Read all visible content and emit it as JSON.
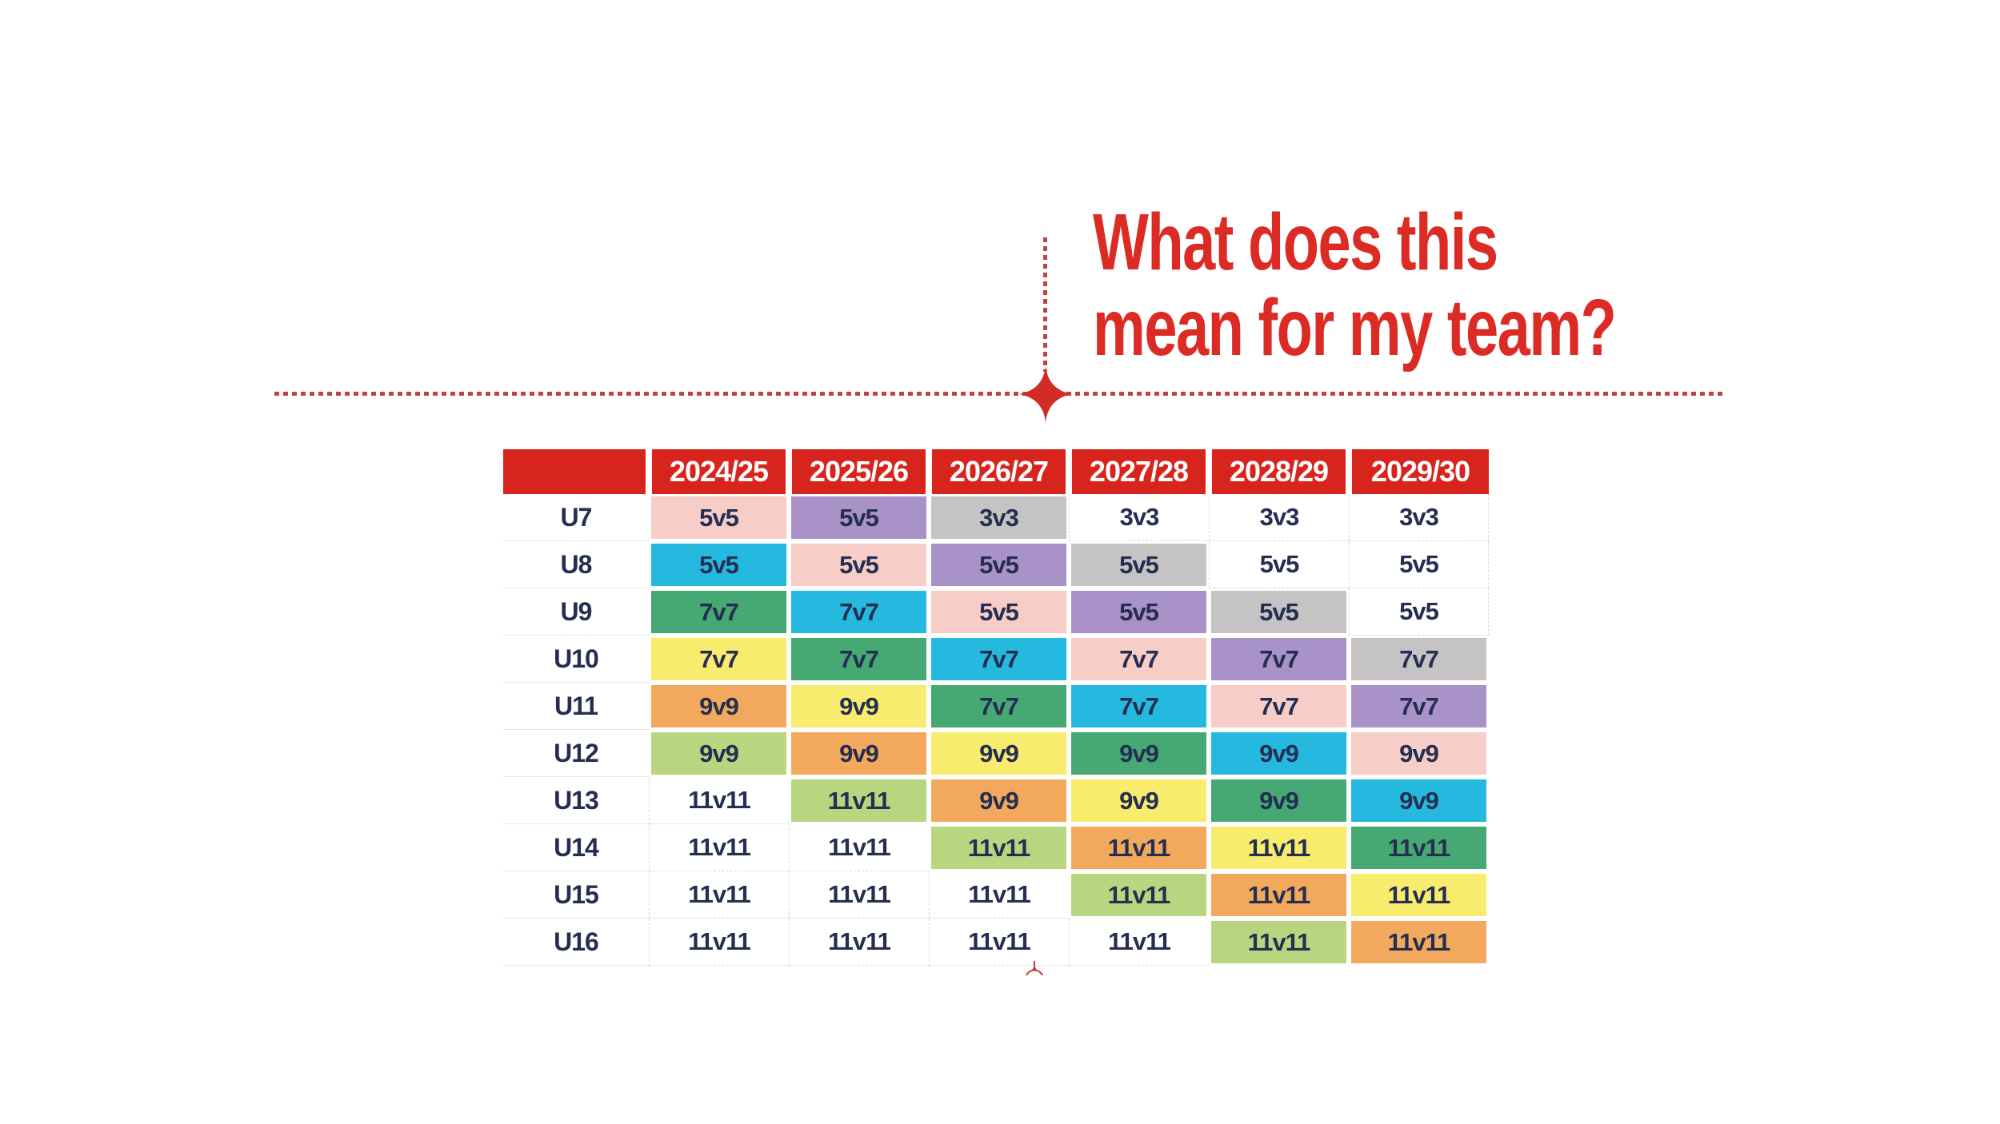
{
  "title": {
    "line1": "What does this",
    "line2": "mean for my team?",
    "color": "#dc2b24"
  },
  "decor": {
    "dash_color": "#c4423d",
    "spark_color": "#d32b25",
    "mini_mark_color": "#c83a33",
    "spark_icon": "four-point-star",
    "mini_mark_icon": "small-spark"
  },
  "table": {
    "header": {
      "corner": "",
      "seasons": [
        "2024/25",
        "2025/26",
        "2026/27",
        "2027/28",
        "2028/29",
        "2029/30"
      ],
      "bg": "#d7251e",
      "text_color": "#ffffff"
    },
    "text_color": "#252e50",
    "palette": {
      "pink": "#f7cdc7",
      "purple": "#a992c7",
      "grey": "#c5c3c3",
      "blue": "#25b9e0",
      "green": "#46a873",
      "yellow": "#f7ec6e",
      "orange": "#f2a95d",
      "lime": "#b8d680",
      "white": "#ffffff"
    },
    "rows": [
      {
        "age": "U7",
        "cells": [
          {
            "format": "5v5",
            "color": "pink"
          },
          {
            "format": "5v5",
            "color": "purple"
          },
          {
            "format": "3v3",
            "color": "grey"
          },
          {
            "format": "3v3",
            "color": "white"
          },
          {
            "format": "3v3",
            "color": "white"
          },
          {
            "format": "3v3",
            "color": "white"
          }
        ]
      },
      {
        "age": "U8",
        "cells": [
          {
            "format": "5v5",
            "color": "blue"
          },
          {
            "format": "5v5",
            "color": "pink"
          },
          {
            "format": "5v5",
            "color": "purple"
          },
          {
            "format": "5v5",
            "color": "grey"
          },
          {
            "format": "5v5",
            "color": "white"
          },
          {
            "format": "5v5",
            "color": "white"
          }
        ]
      },
      {
        "age": "U9",
        "cells": [
          {
            "format": "7v7",
            "color": "green"
          },
          {
            "format": "7v7",
            "color": "blue"
          },
          {
            "format": "5v5",
            "color": "pink"
          },
          {
            "format": "5v5",
            "color": "purple"
          },
          {
            "format": "5v5",
            "color": "grey"
          },
          {
            "format": "5v5",
            "color": "white"
          }
        ]
      },
      {
        "age": "U10",
        "cells": [
          {
            "format": "7v7",
            "color": "yellow"
          },
          {
            "format": "7v7",
            "color": "green"
          },
          {
            "format": "7v7",
            "color": "blue"
          },
          {
            "format": "7v7",
            "color": "pink"
          },
          {
            "format": "7v7",
            "color": "purple"
          },
          {
            "format": "7v7",
            "color": "grey"
          }
        ]
      },
      {
        "age": "U11",
        "cells": [
          {
            "format": "9v9",
            "color": "orange"
          },
          {
            "format": "9v9",
            "color": "yellow"
          },
          {
            "format": "7v7",
            "color": "green"
          },
          {
            "format": "7v7",
            "color": "blue"
          },
          {
            "format": "7v7",
            "color": "pink"
          },
          {
            "format": "7v7",
            "color": "purple"
          }
        ]
      },
      {
        "age": "U12",
        "cells": [
          {
            "format": "9v9",
            "color": "lime"
          },
          {
            "format": "9v9",
            "color": "orange"
          },
          {
            "format": "9v9",
            "color": "yellow"
          },
          {
            "format": "9v9",
            "color": "green"
          },
          {
            "format": "9v9",
            "color": "blue"
          },
          {
            "format": "9v9",
            "color": "pink"
          }
        ]
      },
      {
        "age": "U13",
        "cells": [
          {
            "format": "11v11",
            "color": "white"
          },
          {
            "format": "11v11",
            "color": "lime"
          },
          {
            "format": "9v9",
            "color": "orange"
          },
          {
            "format": "9v9",
            "color": "yellow"
          },
          {
            "format": "9v9",
            "color": "green"
          },
          {
            "format": "9v9",
            "color": "blue"
          }
        ]
      },
      {
        "age": "U14",
        "cells": [
          {
            "format": "11v11",
            "color": "white"
          },
          {
            "format": "11v11",
            "color": "white"
          },
          {
            "format": "11v11",
            "color": "lime"
          },
          {
            "format": "11v11",
            "color": "orange"
          },
          {
            "format": "11v11",
            "color": "yellow"
          },
          {
            "format": "11v11",
            "color": "green"
          }
        ]
      },
      {
        "age": "U15",
        "cells": [
          {
            "format": "11v11",
            "color": "white"
          },
          {
            "format": "11v11",
            "color": "white"
          },
          {
            "format": "11v11",
            "color": "white"
          },
          {
            "format": "11v11",
            "color": "lime"
          },
          {
            "format": "11v11",
            "color": "orange"
          },
          {
            "format": "11v11",
            "color": "yellow"
          }
        ]
      },
      {
        "age": "U16",
        "cells": [
          {
            "format": "11v11",
            "color": "white"
          },
          {
            "format": "11v11",
            "color": "white"
          },
          {
            "format": "11v11",
            "color": "white"
          },
          {
            "format": "11v11",
            "color": "white"
          },
          {
            "format": "11v11",
            "color": "lime"
          },
          {
            "format": "11v11",
            "color": "orange"
          }
        ]
      }
    ]
  }
}
